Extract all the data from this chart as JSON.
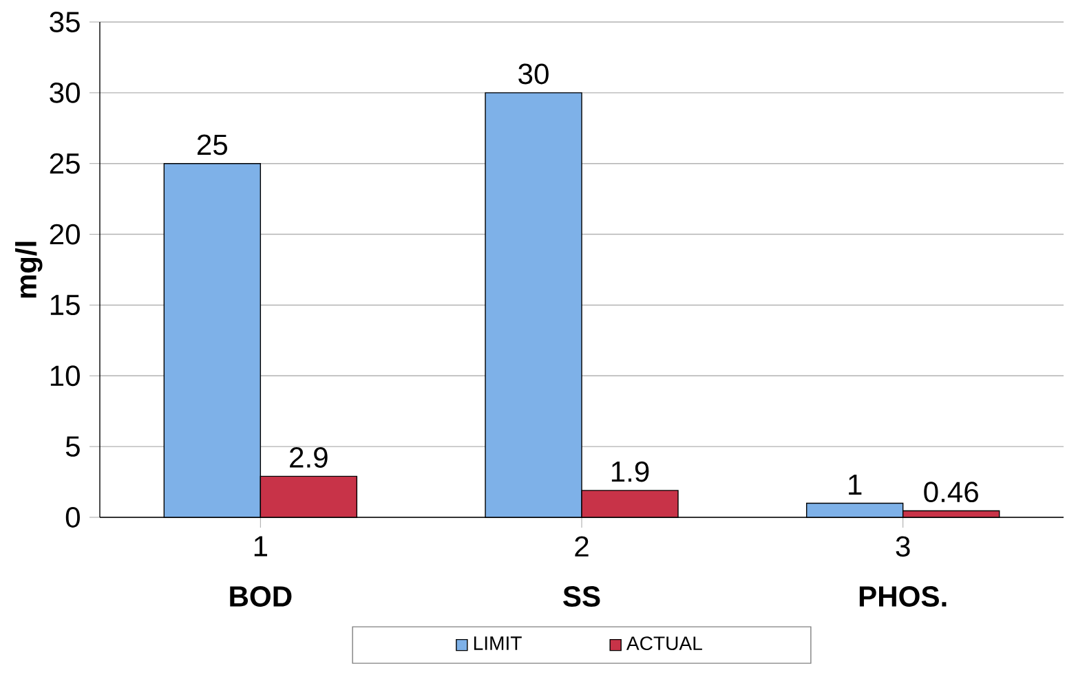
{
  "chart_data": {
    "type": "bar",
    "ylabel": "mg/l",
    "categories": [
      "1",
      "2",
      "3"
    ],
    "series": [
      {
        "name": "LIMIT",
        "color": "#7eb1e8",
        "values": [
          25,
          30,
          1
        ]
      },
      {
        "name": "ACTUAL",
        "color": "#c83348",
        "values": [
          2.9,
          1.9,
          0.46
        ]
      }
    ],
    "annotations": [
      "BOD",
      "SS",
      "PHOS."
    ],
    "ylim": [
      0,
      35
    ],
    "yticks": [
      0,
      5,
      10,
      15,
      20,
      25,
      30,
      35
    ],
    "grid": "y",
    "legend": "bottom",
    "data_labels": true
  }
}
